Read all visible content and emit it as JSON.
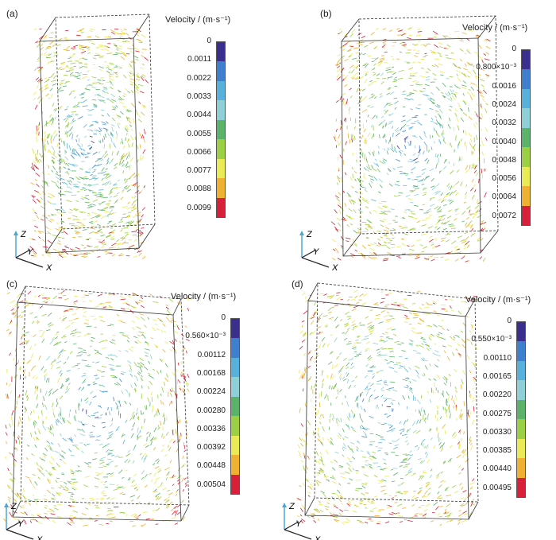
{
  "panels": [
    {
      "id": "a",
      "label": "(a)",
      "colorbar_title": "Velocity / (m·s⁻¹)",
      "ticks": [
        "0",
        "0.0011",
        "0.0022",
        "0.0033",
        "0.0044",
        "0.0055",
        "0.0066",
        "0.0077",
        "0.0088",
        "0.0099"
      ]
    },
    {
      "id": "b",
      "label": "(b)",
      "colorbar_title": "Velocity / (m·s⁻¹)",
      "ticks": [
        "0",
        "0.800×10⁻³",
        "0.0016",
        "0.0024",
        "0.0032",
        "0.0040",
        "0.0048",
        "0.0056",
        "0.0064",
        "0.0072"
      ]
    },
    {
      "id": "c",
      "label": "(c)",
      "colorbar_title": "Velocity / (m·s⁻¹)",
      "ticks": [
        "0",
        "0.560×10⁻³",
        "0.00112",
        "0.00168",
        "0.00224",
        "0.00280",
        "0.00336",
        "0.00392",
        "0.00448",
        "0.00504"
      ]
    },
    {
      "id": "d",
      "label": "(d)",
      "colorbar_title": "Velocity / (m·s⁻¹)",
      "ticks": [
        "0",
        "0.550×10⁻³",
        "0.00110",
        "0.00165",
        "0.00220",
        "0.00275",
        "0.00330",
        "0.00385",
        "0.00440",
        "0.00495"
      ]
    }
  ],
  "axes_labels": {
    "x": "X",
    "y": "Y",
    "z": "Z"
  },
  "colormap": [
    "#3a2e8f",
    "#3f7fd0",
    "#58b1dd",
    "#8fd0d8",
    "#5bb36a",
    "#9bd044",
    "#eaea55",
    "#f0b030",
    "#d8203a"
  ]
}
